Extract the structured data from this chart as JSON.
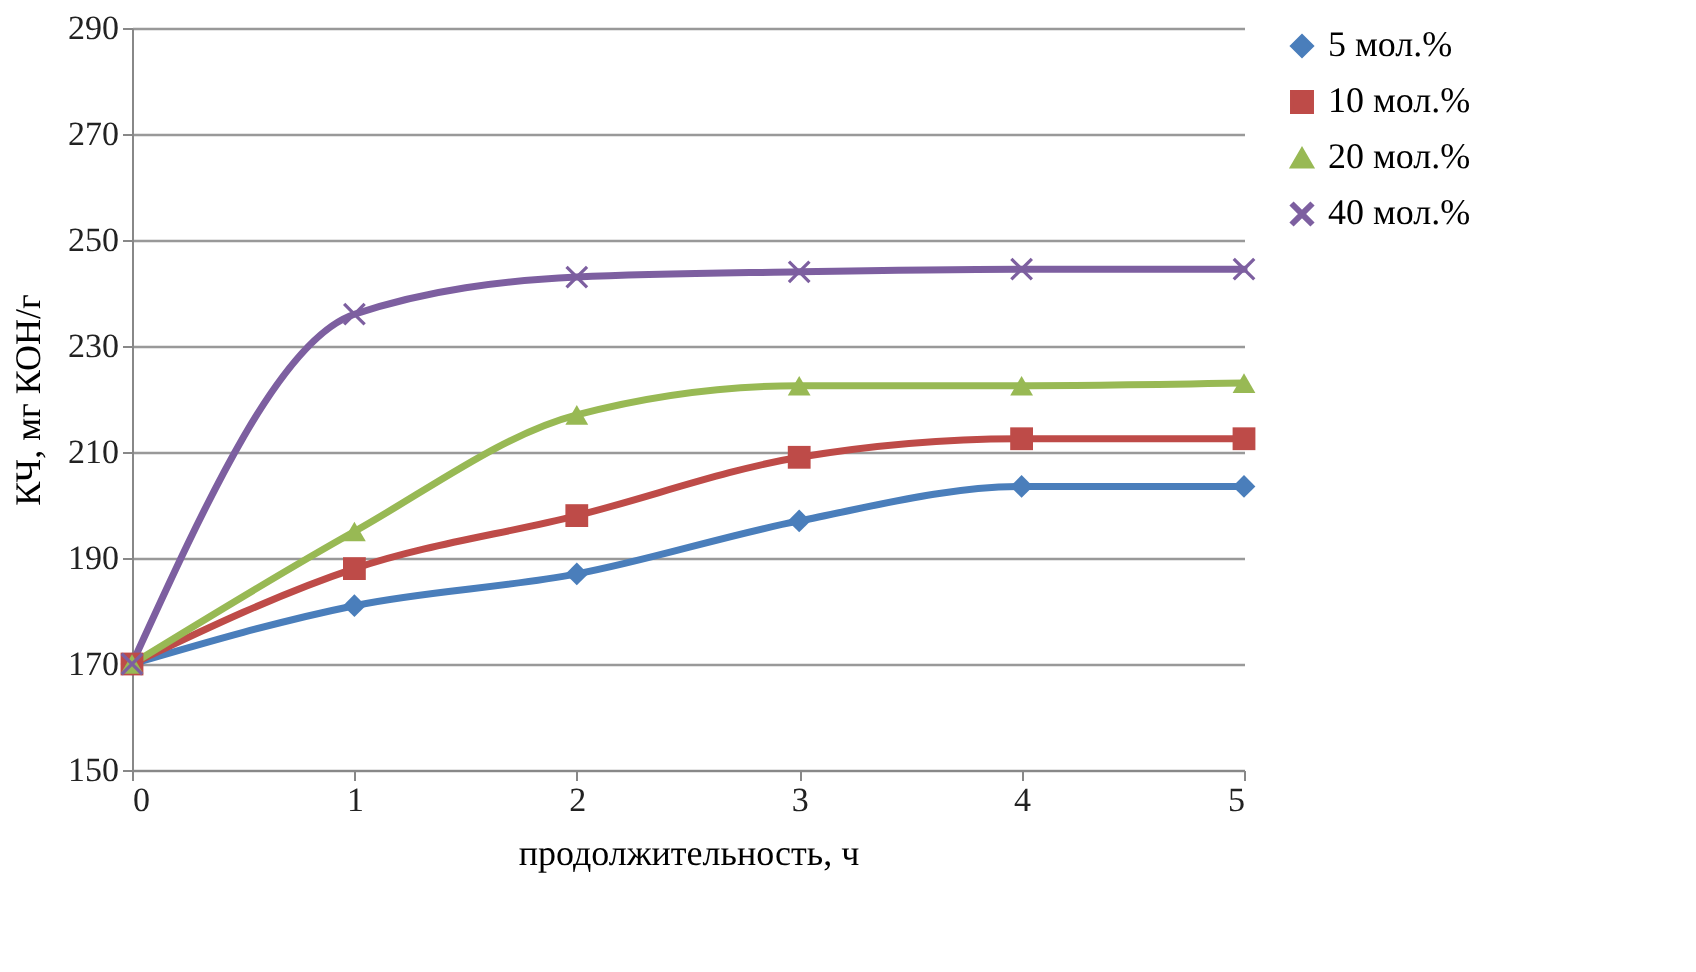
{
  "chart_data": {
    "type": "line",
    "xlabel": "продолжительность, ч",
    "ylabel": "КЧ, мг КОН/г",
    "x": [
      0,
      1,
      2,
      3,
      4,
      5
    ],
    "xlim": [
      0,
      5
    ],
    "xticks": [
      0,
      1,
      2,
      3,
      4,
      5
    ],
    "ylim": [
      150,
      290
    ],
    "yticks": [
      150,
      170,
      190,
      210,
      230,
      250,
      270,
      290
    ],
    "grid": "y",
    "legend": "right",
    "series": [
      {
        "name": "5 мол.%",
        "color": "#4a7ebb",
        "marker": "diamond",
        "values": [
          170,
          181,
          187,
          197,
          203.5,
          203.5
        ]
      },
      {
        "name": "10 мол.%",
        "color": "#be4b48",
        "marker": "square",
        "values": [
          170,
          188,
          198,
          209,
          212.5,
          212.5
        ]
      },
      {
        "name": "20 мол.%",
        "color": "#98b954",
        "marker": "triangle",
        "values": [
          170,
          195,
          217,
          222.5,
          222.5,
          223
        ]
      },
      {
        "name": "40 мол.%",
        "color": "#7d5fa0",
        "marker": "cross",
        "values": [
          170,
          236,
          243,
          244,
          244.5,
          244.5
        ]
      }
    ]
  }
}
